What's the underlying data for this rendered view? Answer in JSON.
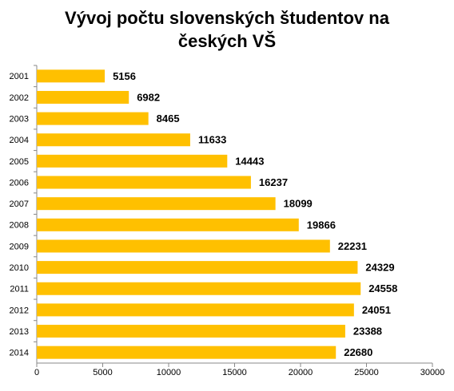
{
  "chart_data": {
    "type": "bar",
    "orientation": "horizontal",
    "title": "Vývoj počtu slovenských študentov na českých VŠ",
    "categories": [
      "2001",
      "2002",
      "2003",
      "2004",
      "2005",
      "2006",
      "2007",
      "2008",
      "2009",
      "2010",
      "2011",
      "2012",
      "2013",
      "2014"
    ],
    "values": [
      5156,
      6982,
      8465,
      11633,
      14443,
      16237,
      18099,
      19866,
      22231,
      24329,
      24558,
      24051,
      23388,
      22680
    ],
    "color": "#FFC000",
    "xlim": [
      0,
      30000
    ],
    "xticks": [
      0,
      5000,
      10000,
      15000,
      20000,
      25000,
      30000
    ],
    "grid": false
  }
}
